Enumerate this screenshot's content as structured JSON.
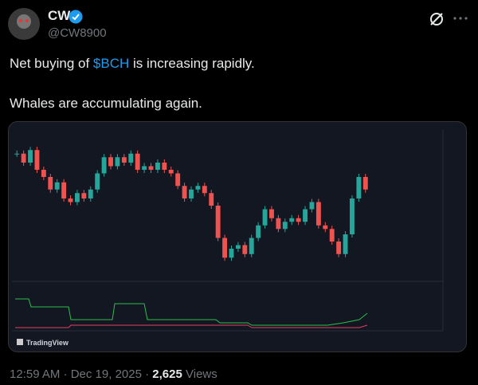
{
  "author": {
    "name": "CW",
    "handle": "@CW8900"
  },
  "post": {
    "text_before": "Net buying of",
    "cashtag": "$BCH",
    "text_after": "is increasing rapidly.",
    "line2": "Whales are accumulating again."
  },
  "media": {
    "brand": "TradingView"
  },
  "chart_data": {
    "type": "candlestick",
    "ylim": [
      510,
      590
    ],
    "up_color": "#26a69a",
    "down_color": "#ef5350",
    "values": [
      579,
      574,
      581,
      570,
      566,
      559,
      563,
      554,
      552,
      557,
      554,
      559,
      568,
      577,
      572,
      577,
      574,
      579,
      570,
      572,
      570,
      574,
      570,
      568,
      561,
      554,
      559,
      561,
      557,
      550,
      532,
      521,
      526,
      528,
      523,
      532,
      539,
      548,
      543,
      537,
      541,
      543,
      541,
      548,
      552,
      539,
      537,
      530,
      523,
      534,
      554,
      566,
      559
    ]
  },
  "footer": {
    "time": "12:59 AM · Dec 19, 2025 ·",
    "views_count": "2,625",
    "views_label": "Views"
  }
}
